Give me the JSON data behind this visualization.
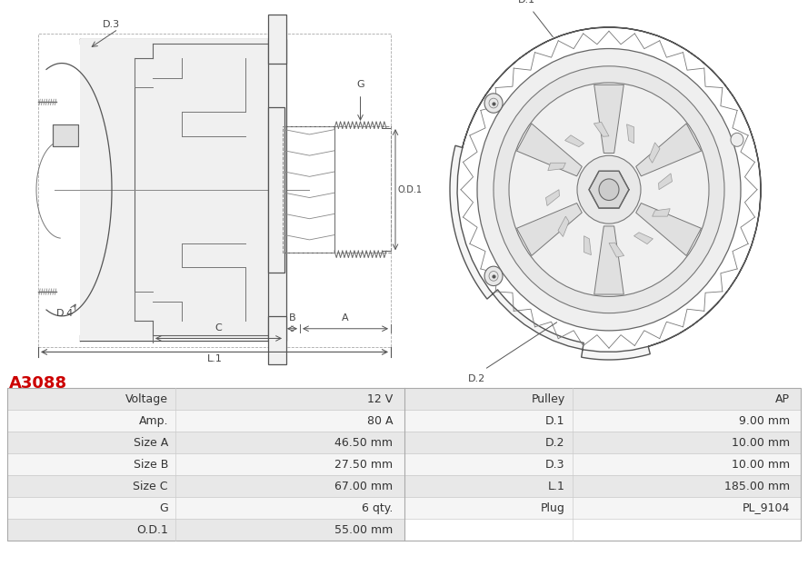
{
  "title": "A3088",
  "title_color": "#cc0000",
  "bg_color": "#ffffff",
  "table": {
    "left_col": [
      [
        "Voltage",
        "12 V"
      ],
      [
        "Amp.",
        "80 A"
      ],
      [
        "Size A",
        "46.50 mm"
      ],
      [
        "Size B",
        "27.50 mm"
      ],
      [
        "Size C",
        "67.00 mm"
      ],
      [
        "G",
        "6 qty."
      ],
      [
        "O.D.1",
        "55.00 mm"
      ]
    ],
    "right_col": [
      [
        "Pulley",
        "AP"
      ],
      [
        "D.1",
        "9.00 mm"
      ],
      [
        "D.2",
        "10.00 mm"
      ],
      [
        "D.3",
        "10.00 mm"
      ],
      [
        "L.1",
        "185.00 mm"
      ],
      [
        "Plug",
        "PL_9104"
      ],
      [
        "",
        ""
      ]
    ]
  },
  "row_colors": [
    "#e8e8e8",
    "#f5f5f5"
  ],
  "font_size_table": 9,
  "line_color": "#555555",
  "fill_light": "#f0f0f0",
  "fill_mid": "#e0e0e0"
}
